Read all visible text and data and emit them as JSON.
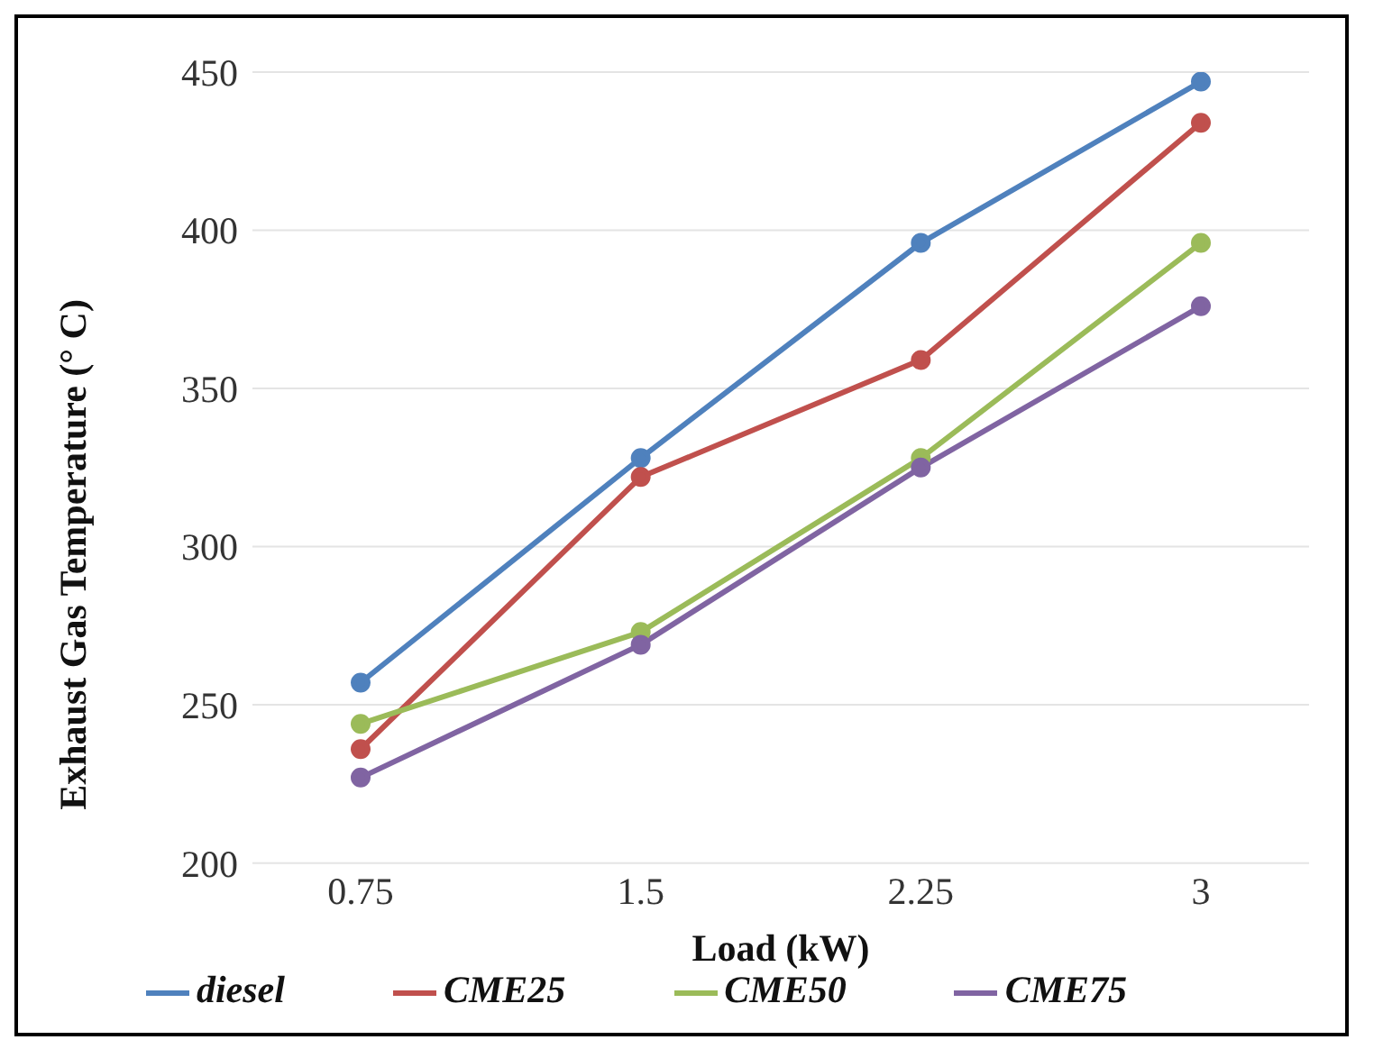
{
  "chart_data": {
    "type": "line",
    "xlabel": "Load (kW)",
    "ylabel": "Exhaust Gas Temperature (° C)",
    "categories": [
      "0.75",
      "1.5",
      "2.25",
      "3"
    ],
    "series": [
      {
        "name": "diesel",
        "color": "#4f81bd",
        "values": [
          257,
          328,
          396,
          447
        ]
      },
      {
        "name": "CME25",
        "color": "#c0504d",
        "values": [
          236,
          322,
          359,
          434
        ]
      },
      {
        "name": "CME50",
        "color": "#9bbb59",
        "values": [
          244,
          273,
          328,
          396
        ]
      },
      {
        "name": "CME75",
        "color": "#8064a2",
        "values": [
          227,
          269,
          325,
          376
        ]
      }
    ],
    "ylim": [
      200,
      450
    ],
    "yticks": [
      200,
      250,
      300,
      350,
      400,
      450
    ],
    "grid": "y",
    "legend": "bottom",
    "marker": "circle",
    "line_style": "solid"
  }
}
